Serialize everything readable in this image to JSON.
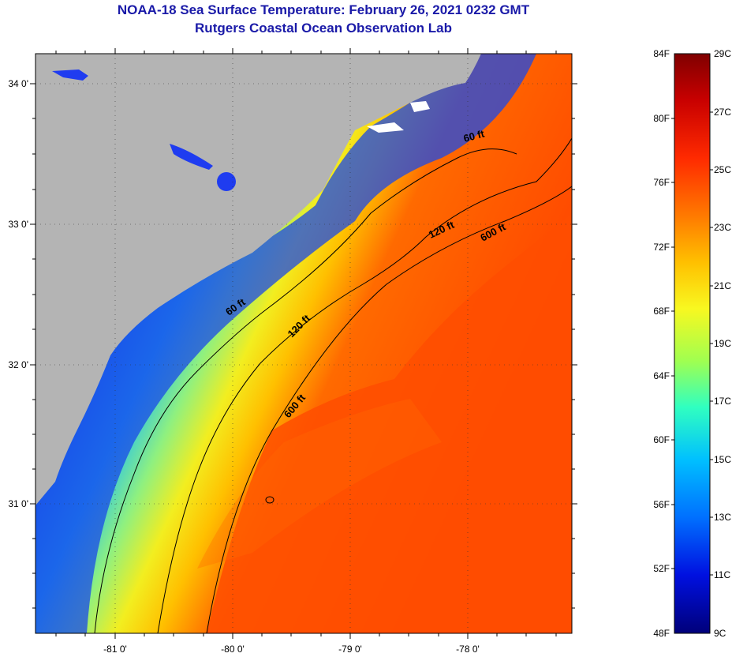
{
  "title": {
    "line1": "NOAA-18 Sea Surface Temperature:  February 26, 2021 0232 GMT",
    "line2": "Rutgers Coastal Ocean Observation Lab"
  },
  "axes": {
    "lat_labels": [
      "34 0'",
      "33 0'",
      "32 0'",
      "31 0'"
    ],
    "lon_labels": [
      "-81 0'",
      "-80 0'",
      "-79 0'",
      "-78 0'"
    ]
  },
  "contour_labels": [
    "60 ft",
    "60 ft",
    "120 ft",
    "120 ft",
    "600 ft",
    "600 ft"
  ],
  "colorbar": {
    "fahrenheit": [
      "84F",
      "80F",
      "76F",
      "72F",
      "68F",
      "64F",
      "60F",
      "56F",
      "52F",
      "48F"
    ],
    "celsius": [
      "29C",
      "27C",
      "25C",
      "23C",
      "21C",
      "19C",
      "17C",
      "15C",
      "13C",
      "11C",
      "9C"
    ]
  },
  "colors": {
    "title": "#1a1aa8",
    "land": "#b4b4b4",
    "gradient": [
      "#800000",
      "#d80000",
      "#ff3c00",
      "#ff8c00",
      "#ffd700",
      "#f0ff20",
      "#90ff60",
      "#20ffd0",
      "#00b4ff",
      "#0050ff",
      "#0000d0",
      "#00008b"
    ]
  }
}
